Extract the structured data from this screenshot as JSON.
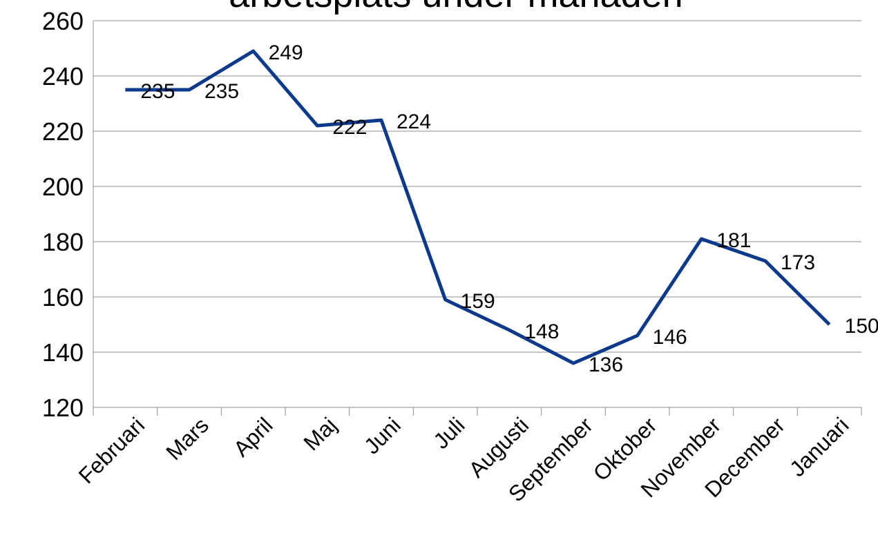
{
  "chart_data": {
    "type": "line",
    "title": "arbetsplats under månaden",
    "categories": [
      "Februari",
      "Mars",
      "April",
      "Maj",
      "Juni",
      "Juli",
      "Augusti",
      "September",
      "Oktober",
      "November",
      "December",
      "Januari"
    ],
    "values": [
      235,
      235,
      249,
      222,
      224,
      159,
      148,
      136,
      146,
      181,
      173,
      150
    ],
    "color": "#0b3a8c",
    "ylim": [
      120,
      260
    ],
    "yticks": [
      120,
      140,
      160,
      180,
      200,
      220,
      240,
      260
    ],
    "grid": true
  }
}
